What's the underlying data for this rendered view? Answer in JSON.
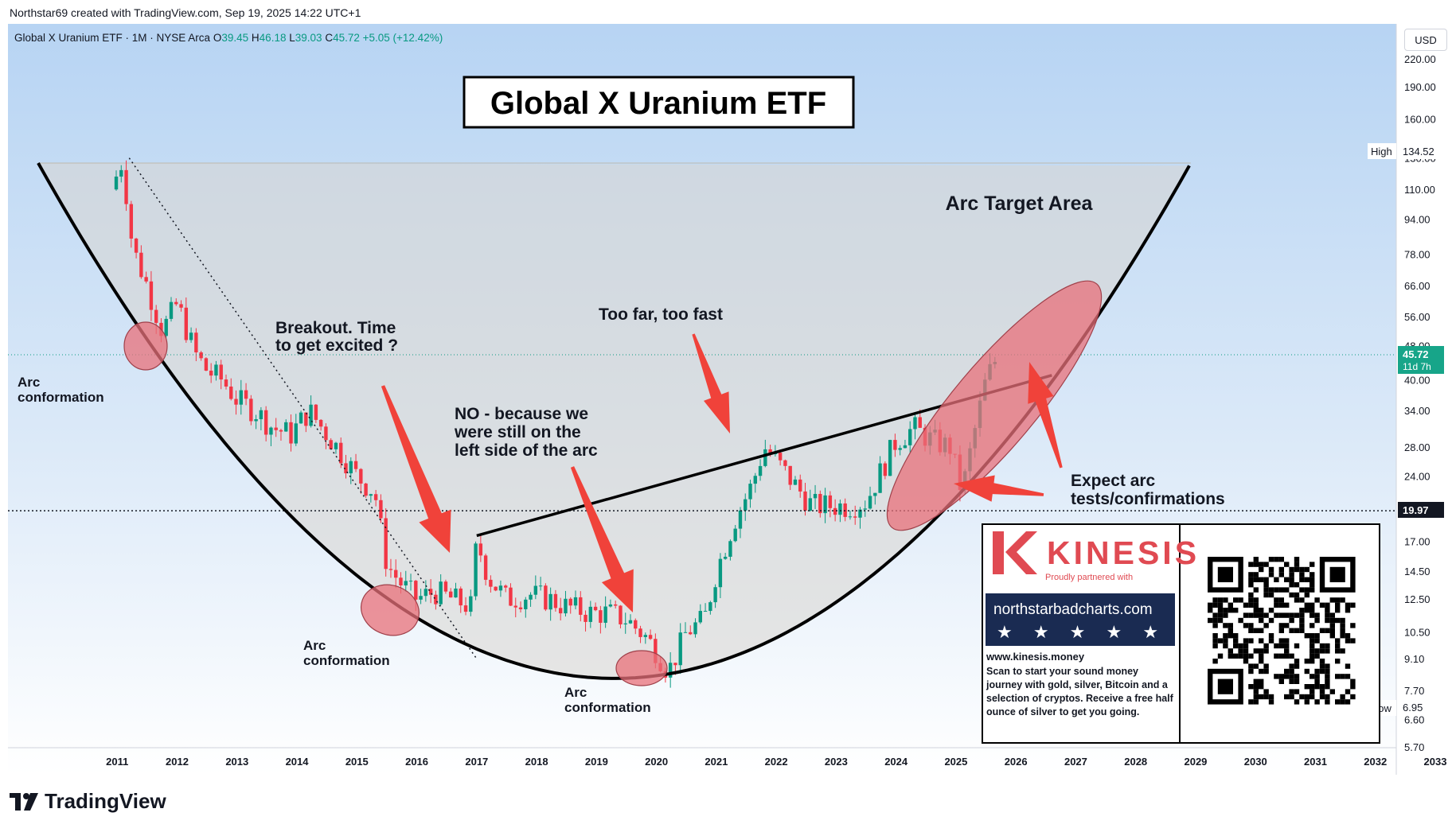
{
  "attribution": "Northstar69 created with TradingView.com, Sep 19, 2025 14:22 UTC+1",
  "symbol": {
    "name": "Global X Uranium ETF · 1M · NYSE Arca",
    "o_label": "O",
    "o_value": "39.45",
    "h_label": "H",
    "h_value": "46.18",
    "l_label": "L",
    "l_value": "39.03",
    "c_label": "C",
    "c_value": "45.72",
    "change": "+5.05 (+12.42%)"
  },
  "currency_button": "USD",
  "brand": "TradingView",
  "colors": {
    "up": "#089981",
    "down": "#f23645",
    "arrow": "#f0423a",
    "ellipse": "#e8707a",
    "bg_top": "#b9d6f4",
    "bg_bottom": "#ffffff"
  },
  "annotations": {
    "title": "Global X Uranium ETF",
    "arc_target": "Arc Target Area",
    "too_far": "Too far, too fast",
    "breakout_1": "Breakout. Time",
    "breakout_2": "to get excited ?",
    "no_1": "NO - because we",
    "no_2": "were still on the",
    "no_3": "left side of the arc",
    "expect_1": "Expect arc",
    "expect_2": "tests/confirmations",
    "arc_conf_1a": "Arc",
    "arc_conf_1b": "conformation",
    "arc_conf_2a": "Arc",
    "arc_conf_2b": "conformation",
    "arc_conf_3a": "Arc",
    "arc_conf_3b": "conformation"
  },
  "price_labels": {
    "high_tag": "High",
    "high_value": "134.52",
    "current": "45.72",
    "countdown": "11d 7h",
    "hline": "19.97",
    "low_tag": "Low",
    "low_value": "6.95"
  },
  "ad": {
    "brand": "KINESIS",
    "partner": "Proudly partnered with",
    "partner_url": "northstarbadcharts.com",
    "stars": "★ ★ ★ ★ ★ ✓",
    "site": "www.kinesis.money",
    "text": "Scan to start your sound money journey with gold, silver, Bitcoin and a selection of cryptos. Receive a free half ounce of silver to get you going."
  },
  "chart_data": {
    "type": "candlestick",
    "title": "Global X Uranium ETF",
    "y_scale": "log",
    "ylim": [
      5.7,
      240
    ],
    "y_ticks": [
      "220.00",
      "190.00",
      "160.00",
      "130.00",
      "110.00",
      "94.00",
      "78.00",
      "66.00",
      "56.00",
      "48.00",
      "40.00",
      "34.00",
      "28.00",
      "24.00",
      "20.00",
      "17.00",
      "14.50",
      "12.50",
      "10.50",
      "9.10",
      "7.70",
      "6.60",
      "5.70"
    ],
    "x_ticks": [
      "2011",
      "2012",
      "2013",
      "2014",
      "2015",
      "2016",
      "2017",
      "2018",
      "2019",
      "2020",
      "2021",
      "2022",
      "2023",
      "2024",
      "2025",
      "2026",
      "2027",
      "2028",
      "2029",
      "2030",
      "2031",
      "2032",
      "2033"
    ],
    "xlim": [
      2010.0,
      2033.0
    ],
    "high": 134.52,
    "low": 6.95,
    "last_close": 45.72,
    "horizontal_line": 19.97,
    "series": [
      {
        "name": "price path",
        "x": [
          2010.9,
          2011.1,
          2011.2,
          2011.3,
          2011.5,
          2011.75,
          2012.0,
          2012.3,
          2012.5,
          2012.75,
          2013.0,
          2013.3,
          2013.6,
          2013.9,
          2014.2,
          2014.5,
          2014.75,
          2015.0,
          2015.3,
          2015.5,
          2015.75,
          2016.0,
          2016.3,
          2016.6,
          2016.9,
          2017.0,
          2017.2,
          2017.5,
          2017.9,
          2018.2,
          2018.5,
          2018.9,
          2019.2,
          2019.5,
          2019.8,
          2020.0,
          2020.2,
          2020.5,
          2020.8,
          2021.0,
          2021.3,
          2021.6,
          2021.8,
          2022.0,
          2022.3,
          2022.6,
          2022.9,
          2023.2,
          2023.5,
          2023.8,
          2024.0,
          2024.3,
          2024.6,
          2024.9,
          2025.1,
          2025.3,
          2025.5,
          2025.7
        ],
        "y": [
          110,
          130,
          90,
          78,
          66,
          52,
          60,
          46,
          42,
          40,
          36,
          34,
          31,
          30,
          34,
          30,
          27,
          24,
          22,
          15,
          13.5,
          12.5,
          13,
          12.5,
          12,
          17,
          14,
          12.5,
          12.8,
          12.5,
          12,
          11.6,
          11.6,
          11.2,
          10.3,
          9.5,
          8.5,
          10.5,
          11.2,
          14.5,
          19,
          23,
          28,
          26,
          23,
          20.5,
          20.5,
          20.5,
          21,
          25.5,
          29,
          31,
          29,
          28,
          22,
          30,
          40,
          45.72
        ]
      }
    ],
    "trendlines": [
      {
        "name": "downtrend",
        "from": [
          2011.2,
          130
        ],
        "to": [
          2017.0,
          9.1
        ]
      },
      {
        "name": "breakout line",
        "from": [
          2017.0,
          17.5
        ],
        "to": [
          2026.6,
          41
        ]
      }
    ],
    "arc": {
      "name": "cup arc",
      "vertex": [
        2019.3,
        8.2
      ]
    }
  }
}
